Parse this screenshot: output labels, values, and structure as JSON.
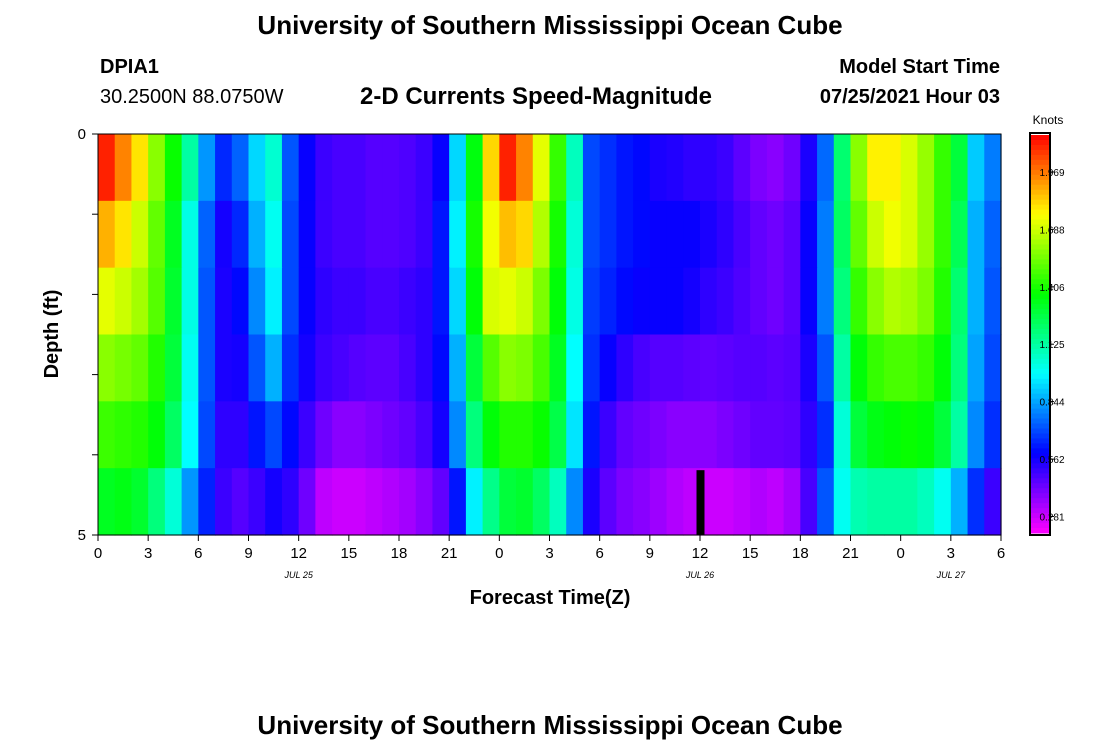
{
  "header": {
    "title": "University of Southern Mississippi Ocean Cube",
    "station_id": "DPIA1",
    "station_coords": "30.2500N  88.0750W",
    "plot_title": "2-D Currents Speed-Magnitude",
    "start_label": "Model Start Time",
    "start_value": "07/25/2021 Hour 03"
  },
  "footer": {
    "title": "University of Southern Mississippi Ocean Cube"
  },
  "chart_data": {
    "type": "heatmap",
    "xlabel": "Forecast Time(Z)",
    "ylabel": "Depth (ft)",
    "x_tick_labels": [
      "0",
      "3",
      "6",
      "9",
      "12",
      "15",
      "18",
      "21",
      "0",
      "3",
      "6",
      "9",
      "12",
      "15",
      "18",
      "21",
      "0",
      "3",
      "6"
    ],
    "x_range_hours": [
      0,
      54
    ],
    "date_labels": [
      {
        "hour": 12,
        "text": "JUL 25"
      },
      {
        "hour": 36,
        "text": "JUL 26"
      },
      {
        "hour": 51,
        "text": "JUL 27"
      }
    ],
    "y_range_ft": [
      0,
      5
    ],
    "y_tick_labels": [
      {
        "depth": 0,
        "text": "0"
      },
      {
        "depth": 5,
        "text": "5"
      }
    ],
    "y_minor_ticks": [
      1,
      2,
      3,
      4
    ],
    "depth_levels": [
      0,
      1,
      2,
      3,
      4,
      5
    ],
    "time_step_hours": 1,
    "speed_knots": [
      [
        2.1,
        1.95,
        1.8,
        1.58,
        1.38,
        1.12,
        0.82,
        0.65,
        0.74,
        0.92,
        1.05,
        0.72,
        0.58,
        0.5,
        0.48,
        0.48,
        0.46,
        0.46,
        0.47,
        0.5,
        0.58,
        0.92,
        1.35,
        1.82,
        2.1,
        1.95,
        1.72,
        1.45,
        1.08,
        0.7,
        0.66,
        0.62,
        0.6,
        0.55,
        0.54,
        0.52,
        0.52,
        0.5,
        0.45,
        0.4,
        0.38,
        0.42,
        0.55,
        0.75,
        1.2,
        1.58,
        1.78,
        1.78,
        1.7,
        1.6,
        1.45,
        1.28,
        0.9,
        0.78
      ],
      [
        1.88,
        1.8,
        1.68,
        1.52,
        1.32,
        1.02,
        0.74,
        0.56,
        0.65,
        0.86,
        1.0,
        0.7,
        0.58,
        0.5,
        0.48,
        0.48,
        0.46,
        0.46,
        0.47,
        0.5,
        0.62,
        0.96,
        1.4,
        1.74,
        1.86,
        1.82,
        1.64,
        1.4,
        1.04,
        0.7,
        0.66,
        0.62,
        0.6,
        0.58,
        0.58,
        0.58,
        0.55,
        0.52,
        0.48,
        0.44,
        0.42,
        0.45,
        0.58,
        0.78,
        1.22,
        1.52,
        1.68,
        1.74,
        1.7,
        1.6,
        1.45,
        1.24,
        0.86,
        0.74
      ],
      [
        1.72,
        1.68,
        1.62,
        1.5,
        1.3,
        1.02,
        0.72,
        0.55,
        0.6,
        0.8,
        0.96,
        0.7,
        0.58,
        0.52,
        0.5,
        0.5,
        0.48,
        0.48,
        0.5,
        0.52,
        0.62,
        0.92,
        1.36,
        1.7,
        1.72,
        1.68,
        1.56,
        1.36,
        1.02,
        0.68,
        0.64,
        0.6,
        0.58,
        0.58,
        0.58,
        0.56,
        0.52,
        0.5,
        0.47,
        0.44,
        0.42,
        0.45,
        0.58,
        0.78,
        1.18,
        1.45,
        1.58,
        1.64,
        1.62,
        1.56,
        1.42,
        1.2,
        0.86,
        0.72
      ],
      [
        1.58,
        1.55,
        1.52,
        1.42,
        1.28,
        1.0,
        0.72,
        0.55,
        0.56,
        0.72,
        0.86,
        0.66,
        0.56,
        0.5,
        0.48,
        0.46,
        0.45,
        0.45,
        0.48,
        0.52,
        0.6,
        0.86,
        1.28,
        1.5,
        1.58,
        1.56,
        1.48,
        1.32,
        0.98,
        0.66,
        0.58,
        0.52,
        0.48,
        0.46,
        0.46,
        0.45,
        0.44,
        0.45,
        0.46,
        0.46,
        0.45,
        0.46,
        0.55,
        0.72,
        1.12,
        1.36,
        1.45,
        1.48,
        1.48,
        1.45,
        1.36,
        1.18,
        0.84,
        0.7
      ],
      [
        1.46,
        1.44,
        1.42,
        1.36,
        1.22,
        0.98,
        0.7,
        0.52,
        0.52,
        0.62,
        0.7,
        0.6,
        0.5,
        0.42,
        0.38,
        0.38,
        0.4,
        0.42,
        0.44,
        0.48,
        0.56,
        0.8,
        1.18,
        1.36,
        1.42,
        1.42,
        1.38,
        1.26,
        0.94,
        0.62,
        0.5,
        0.44,
        0.42,
        0.4,
        0.38,
        0.38,
        0.38,
        0.4,
        0.42,
        0.44,
        0.44,
        0.45,
        0.52,
        0.66,
        1.04,
        1.28,
        1.34,
        1.36,
        1.38,
        1.36,
        1.28,
        1.12,
        0.8,
        0.66
      ],
      [
        1.32,
        1.34,
        1.3,
        1.18,
        1.04,
        0.82,
        0.64,
        0.5,
        0.46,
        0.5,
        0.56,
        0.52,
        0.42,
        0.3,
        0.28,
        0.28,
        0.3,
        0.32,
        0.34,
        0.38,
        0.44,
        0.62,
        0.96,
        1.16,
        1.28,
        1.3,
        1.22,
        1.08,
        0.8,
        0.55,
        0.45,
        0.4,
        0.38,
        0.35,
        0.32,
        0.3,
        0.28,
        0.28,
        0.3,
        0.32,
        0.3,
        0.34,
        0.48,
        0.72,
        1.0,
        1.1,
        1.12,
        1.12,
        1.12,
        1.08,
        1.0,
        0.86,
        0.66,
        0.5
      ]
    ],
    "colorbar": {
      "label": "Knots",
      "tick_labels": [
        "0.281",
        "0.562",
        "0.844",
        "1.125",
        "1.406",
        "1.688",
        "1.969"
      ],
      "range": [
        0.2,
        2.15
      ]
    },
    "current_time_marker_hour": 36
  }
}
